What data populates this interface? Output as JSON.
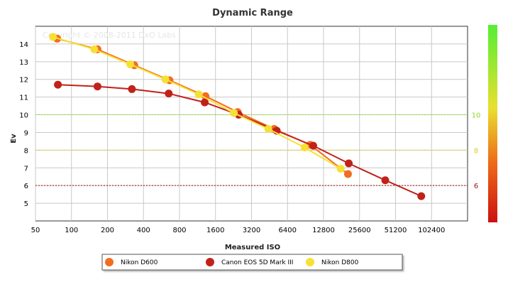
{
  "chart_data": {
    "type": "line",
    "title": "Dynamic Range",
    "xlabel": "Measured ISO",
    "ylabel": "Ev",
    "x_scale": "log2",
    "x_ticks": [
      "50",
      "100",
      "200",
      "400",
      "800",
      "1600",
      "3200",
      "6400",
      "12800",
      "25600",
      "51200",
      "102400"
    ],
    "y_ticks": [
      "5",
      "6",
      "7",
      "8",
      "9",
      "10",
      "11",
      "12",
      "13",
      "14"
    ],
    "xlim": [
      50,
      204800
    ],
    "ylim": [
      4,
      15
    ],
    "grid": true,
    "copyright": "Copyright © 2008-2011 DxO Labs",
    "reference_lines": [
      {
        "label": "10",
        "y": 10,
        "color": "#88dd22"
      },
      {
        "label": "8",
        "y": 8,
        "color": "#ddcc22"
      },
      {
        "label": "6",
        "y": 6,
        "color": "#aa1111"
      }
    ],
    "legend_position": "bottom",
    "series": [
      {
        "name": "Nikon D600",
        "color": "#f26d21",
        "x": [
          76,
          165,
          335,
          660,
          1320,
          2450,
          4950,
          9900,
          20500
        ],
        "y": [
          14.3,
          13.7,
          12.8,
          11.95,
          11.05,
          10.15,
          9.2,
          8.3,
          6.65
        ]
      },
      {
        "name": "Canon EOS 5D Mark III",
        "color": "#c0221a",
        "x": [
          77,
          165,
          320,
          650,
          1300,
          2500,
          5200,
          10500,
          20800,
          42000,
          84000
        ],
        "y": [
          11.7,
          11.6,
          11.45,
          11.2,
          10.7,
          10.0,
          9.1,
          8.25,
          7.25,
          6.3,
          5.4
        ]
      },
      {
        "name": "Nikon D800",
        "color": "#f7e034",
        "x": [
          70,
          155,
          310,
          610,
          1160,
          2280,
          4420,
          8900,
          17800
        ],
        "y": [
          14.4,
          13.7,
          12.85,
          12.0,
          11.15,
          10.1,
          9.2,
          8.15,
          6.95
        ]
      }
    ]
  }
}
